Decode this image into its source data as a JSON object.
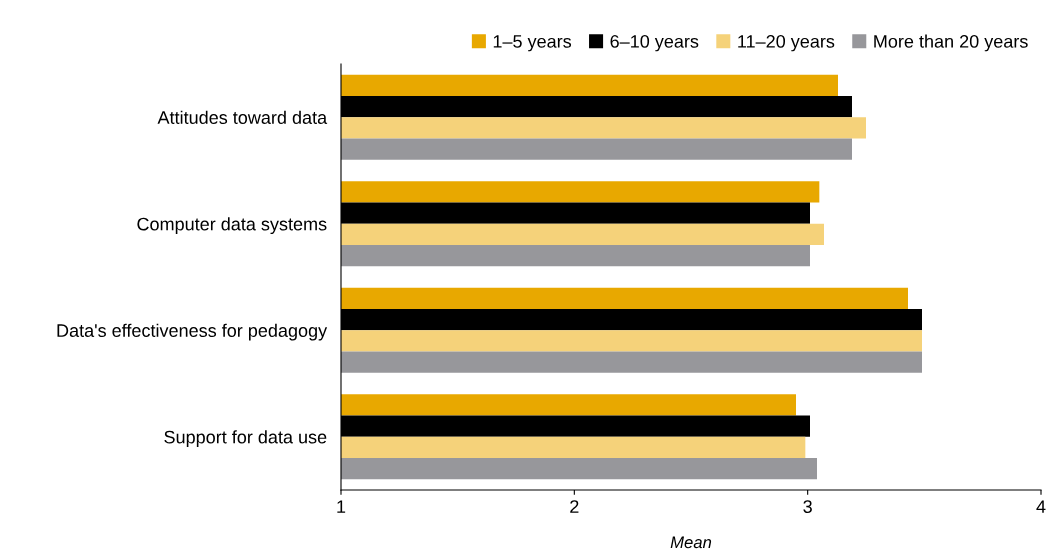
{
  "chart_data": {
    "type": "bar",
    "orientation": "horizontal",
    "xlabel": "Mean",
    "categories": [
      "Attitudes toward data",
      "Computer data systems",
      "Data's effectiveness for pedagogy",
      "Support for data use"
    ],
    "series": [
      {
        "name": "1–5 years",
        "color": "#e8a800",
        "values": [
          3.13,
          3.05,
          3.43,
          2.95
        ]
      },
      {
        "name": "6–10 years",
        "color": "#000000",
        "values": [
          3.19,
          3.01,
          3.49,
          3.01
        ]
      },
      {
        "name": "11–20 years",
        "color": "#f5d27a",
        "values": [
          3.25,
          3.07,
          3.49,
          2.99
        ]
      },
      {
        "name": "More than 20 years",
        "color": "#97979b",
        "values": [
          3.19,
          3.01,
          3.49,
          3.04
        ]
      }
    ],
    "xlim": [
      1,
      4
    ],
    "xticks": [
      1,
      2,
      3,
      4
    ],
    "grid": false,
    "legend": "top right"
  }
}
